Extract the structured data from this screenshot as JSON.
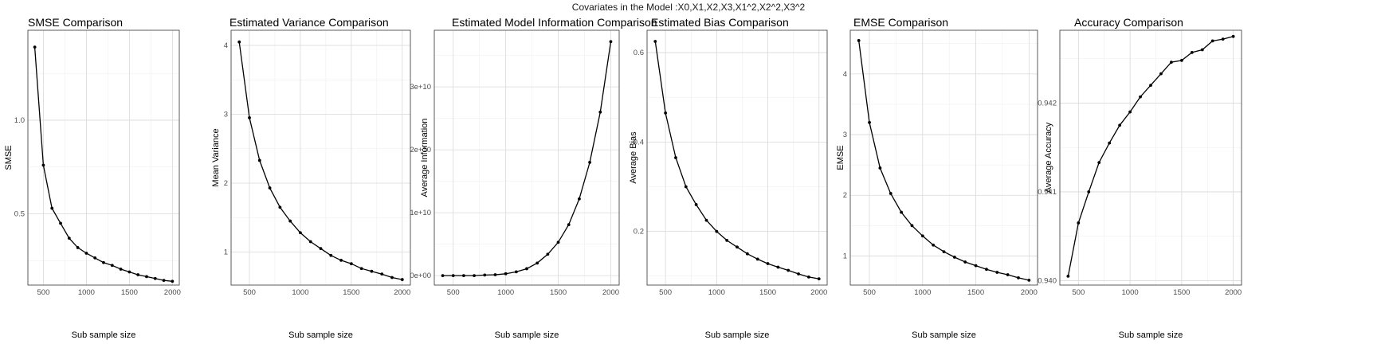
{
  "suptitle": "Covariates in the Model :X0,X1,X2,X3,X1^2,X2^2,X3^2",
  "chart_data": [
    {
      "type": "line",
      "title": "SMSE Comparison",
      "xlabel": "Sub sample size",
      "ylabel": "SMSE",
      "x": [
        400,
        500,
        600,
        700,
        800,
        900,
        1000,
        1100,
        1200,
        1300,
        1400,
        1500,
        1600,
        1700,
        1800,
        1900,
        2000
      ],
      "y": [
        1.39,
        0.76,
        0.53,
        0.45,
        0.37,
        0.32,
        0.29,
        0.265,
        0.24,
        0.225,
        0.205,
        0.19,
        0.175,
        0.165,
        0.155,
        0.145,
        0.14
      ],
      "xticks": [
        500,
        1000,
        1500,
        2000
      ],
      "yticks": [
        0.5,
        1.0
      ],
      "ytick_labels": [
        "0.5",
        "1.0"
      ],
      "xlim": [
        320,
        2080
      ],
      "ylim": [
        0.12,
        1.48
      ],
      "grid": true
    },
    {
      "type": "line",
      "title": "Estimated Variance Comparison",
      "xlabel": "Sub sample size",
      "ylabel": "Mean Variance",
      "x": [
        400,
        500,
        600,
        700,
        800,
        900,
        1000,
        1100,
        1200,
        1300,
        1400,
        1500,
        1600,
        1700,
        1800,
        1900,
        2000
      ],
      "y": [
        4.05,
        2.95,
        2.33,
        1.93,
        1.65,
        1.45,
        1.28,
        1.15,
        1.05,
        0.95,
        0.88,
        0.83,
        0.76,
        0.72,
        0.68,
        0.63,
        0.6
      ],
      "xticks": [
        500,
        1000,
        1500,
        2000
      ],
      "yticks": [
        1,
        2,
        3,
        4
      ],
      "ytick_labels": [
        "1",
        "2",
        "3",
        "4"
      ],
      "xlim": [
        320,
        2080
      ],
      "ylim": [
        0.52,
        4.22
      ],
      "grid": true
    },
    {
      "type": "line",
      "title": "Estimated Model Information Comparison",
      "xlabel": "Sub sample size",
      "ylabel": "Average Information",
      "x": [
        400,
        500,
        600,
        700,
        800,
        900,
        1000,
        1100,
        1200,
        1300,
        1400,
        1500,
        1600,
        1700,
        1800,
        1900,
        2000
      ],
      "y": [
        0.0,
        0.0,
        0.0,
        0.0,
        100000000.0,
        150000000.0,
        300000000.0,
        600000000.0,
        1100000000.0,
        2000000000.0,
        3400000000.0,
        5300000000.0,
        8100000000.0,
        12200000000.0,
        18000000000.0,
        26000000000.0,
        37200000000.0
      ],
      "xticks": [
        500,
        1000,
        1500,
        2000
      ],
      "yticks": [
        0,
        10000000000.0,
        20000000000.0,
        30000000000.0
      ],
      "ytick_labels": [
        "0e+00",
        "1e+10",
        "2e+10",
        "3e+10"
      ],
      "xlim": [
        320,
        2080
      ],
      "ylim": [
        -1500000000.0,
        39000000000.0
      ],
      "grid": true
    },
    {
      "type": "line",
      "title": "Estimated Bias Comparison",
      "xlabel": "Sub sample size",
      "ylabel": "Average Bias",
      "x": [
        400,
        500,
        600,
        700,
        800,
        900,
        1000,
        1100,
        1200,
        1300,
        1400,
        1500,
        1600,
        1700,
        1800,
        1900,
        2000
      ],
      "y": [
        0.625,
        0.465,
        0.365,
        0.3,
        0.26,
        0.225,
        0.2,
        0.18,
        0.165,
        0.15,
        0.138,
        0.128,
        0.12,
        0.113,
        0.105,
        0.098,
        0.094
      ],
      "xticks": [
        500,
        1000,
        1500,
        2000
      ],
      "yticks": [
        0.2,
        0.4,
        0.6
      ],
      "ytick_labels": [
        "0.2",
        "0.4",
        "0.6"
      ],
      "xlim": [
        320,
        2080
      ],
      "ylim": [
        0.08,
        0.65
      ],
      "grid": true
    },
    {
      "type": "line",
      "title": "EMSE Comparison",
      "xlabel": "Sub sample size",
      "ylabel": "EMSE",
      "x": [
        400,
        500,
        600,
        700,
        800,
        900,
        1000,
        1100,
        1200,
        1300,
        1400,
        1500,
        1600,
        1700,
        1800,
        1900,
        2000
      ],
      "y": [
        4.55,
        3.2,
        2.45,
        2.03,
        1.72,
        1.5,
        1.33,
        1.18,
        1.07,
        0.98,
        0.9,
        0.84,
        0.78,
        0.73,
        0.69,
        0.64,
        0.6
      ],
      "xticks": [
        500,
        1000,
        1500,
        2000
      ],
      "yticks": [
        1,
        2,
        3,
        4
      ],
      "ytick_labels": [
        "1",
        "2",
        "3",
        "4"
      ],
      "xlim": [
        320,
        2080
      ],
      "ylim": [
        0.52,
        4.72
      ],
      "grid": true
    },
    {
      "type": "line",
      "title": "Accuracy Comparison",
      "xlabel": "Sub sample size",
      "ylabel": "Average Accuracy",
      "x": [
        400,
        500,
        600,
        700,
        800,
        900,
        1000,
        1100,
        1200,
        1300,
        1400,
        1500,
        1600,
        1700,
        1800,
        1900,
        2000
      ],
      "y": [
        0.94005,
        0.94065,
        0.941,
        0.94133,
        0.94155,
        0.94175,
        0.9419,
        0.94207,
        0.9422,
        0.94233,
        0.94246,
        0.94248,
        0.94257,
        0.9426,
        0.9427,
        0.94272,
        0.94275
      ],
      "xticks": [
        500,
        1000,
        1500,
        2000
      ],
      "yticks": [
        0.94,
        0.941,
        0.942
      ],
      "ytick_labels": [
        "0.940",
        "0.941",
        "0.942"
      ],
      "xlim": [
        320,
        2080
      ],
      "ylim": [
        0.93995,
        0.94282
      ],
      "grid": true
    }
  ]
}
